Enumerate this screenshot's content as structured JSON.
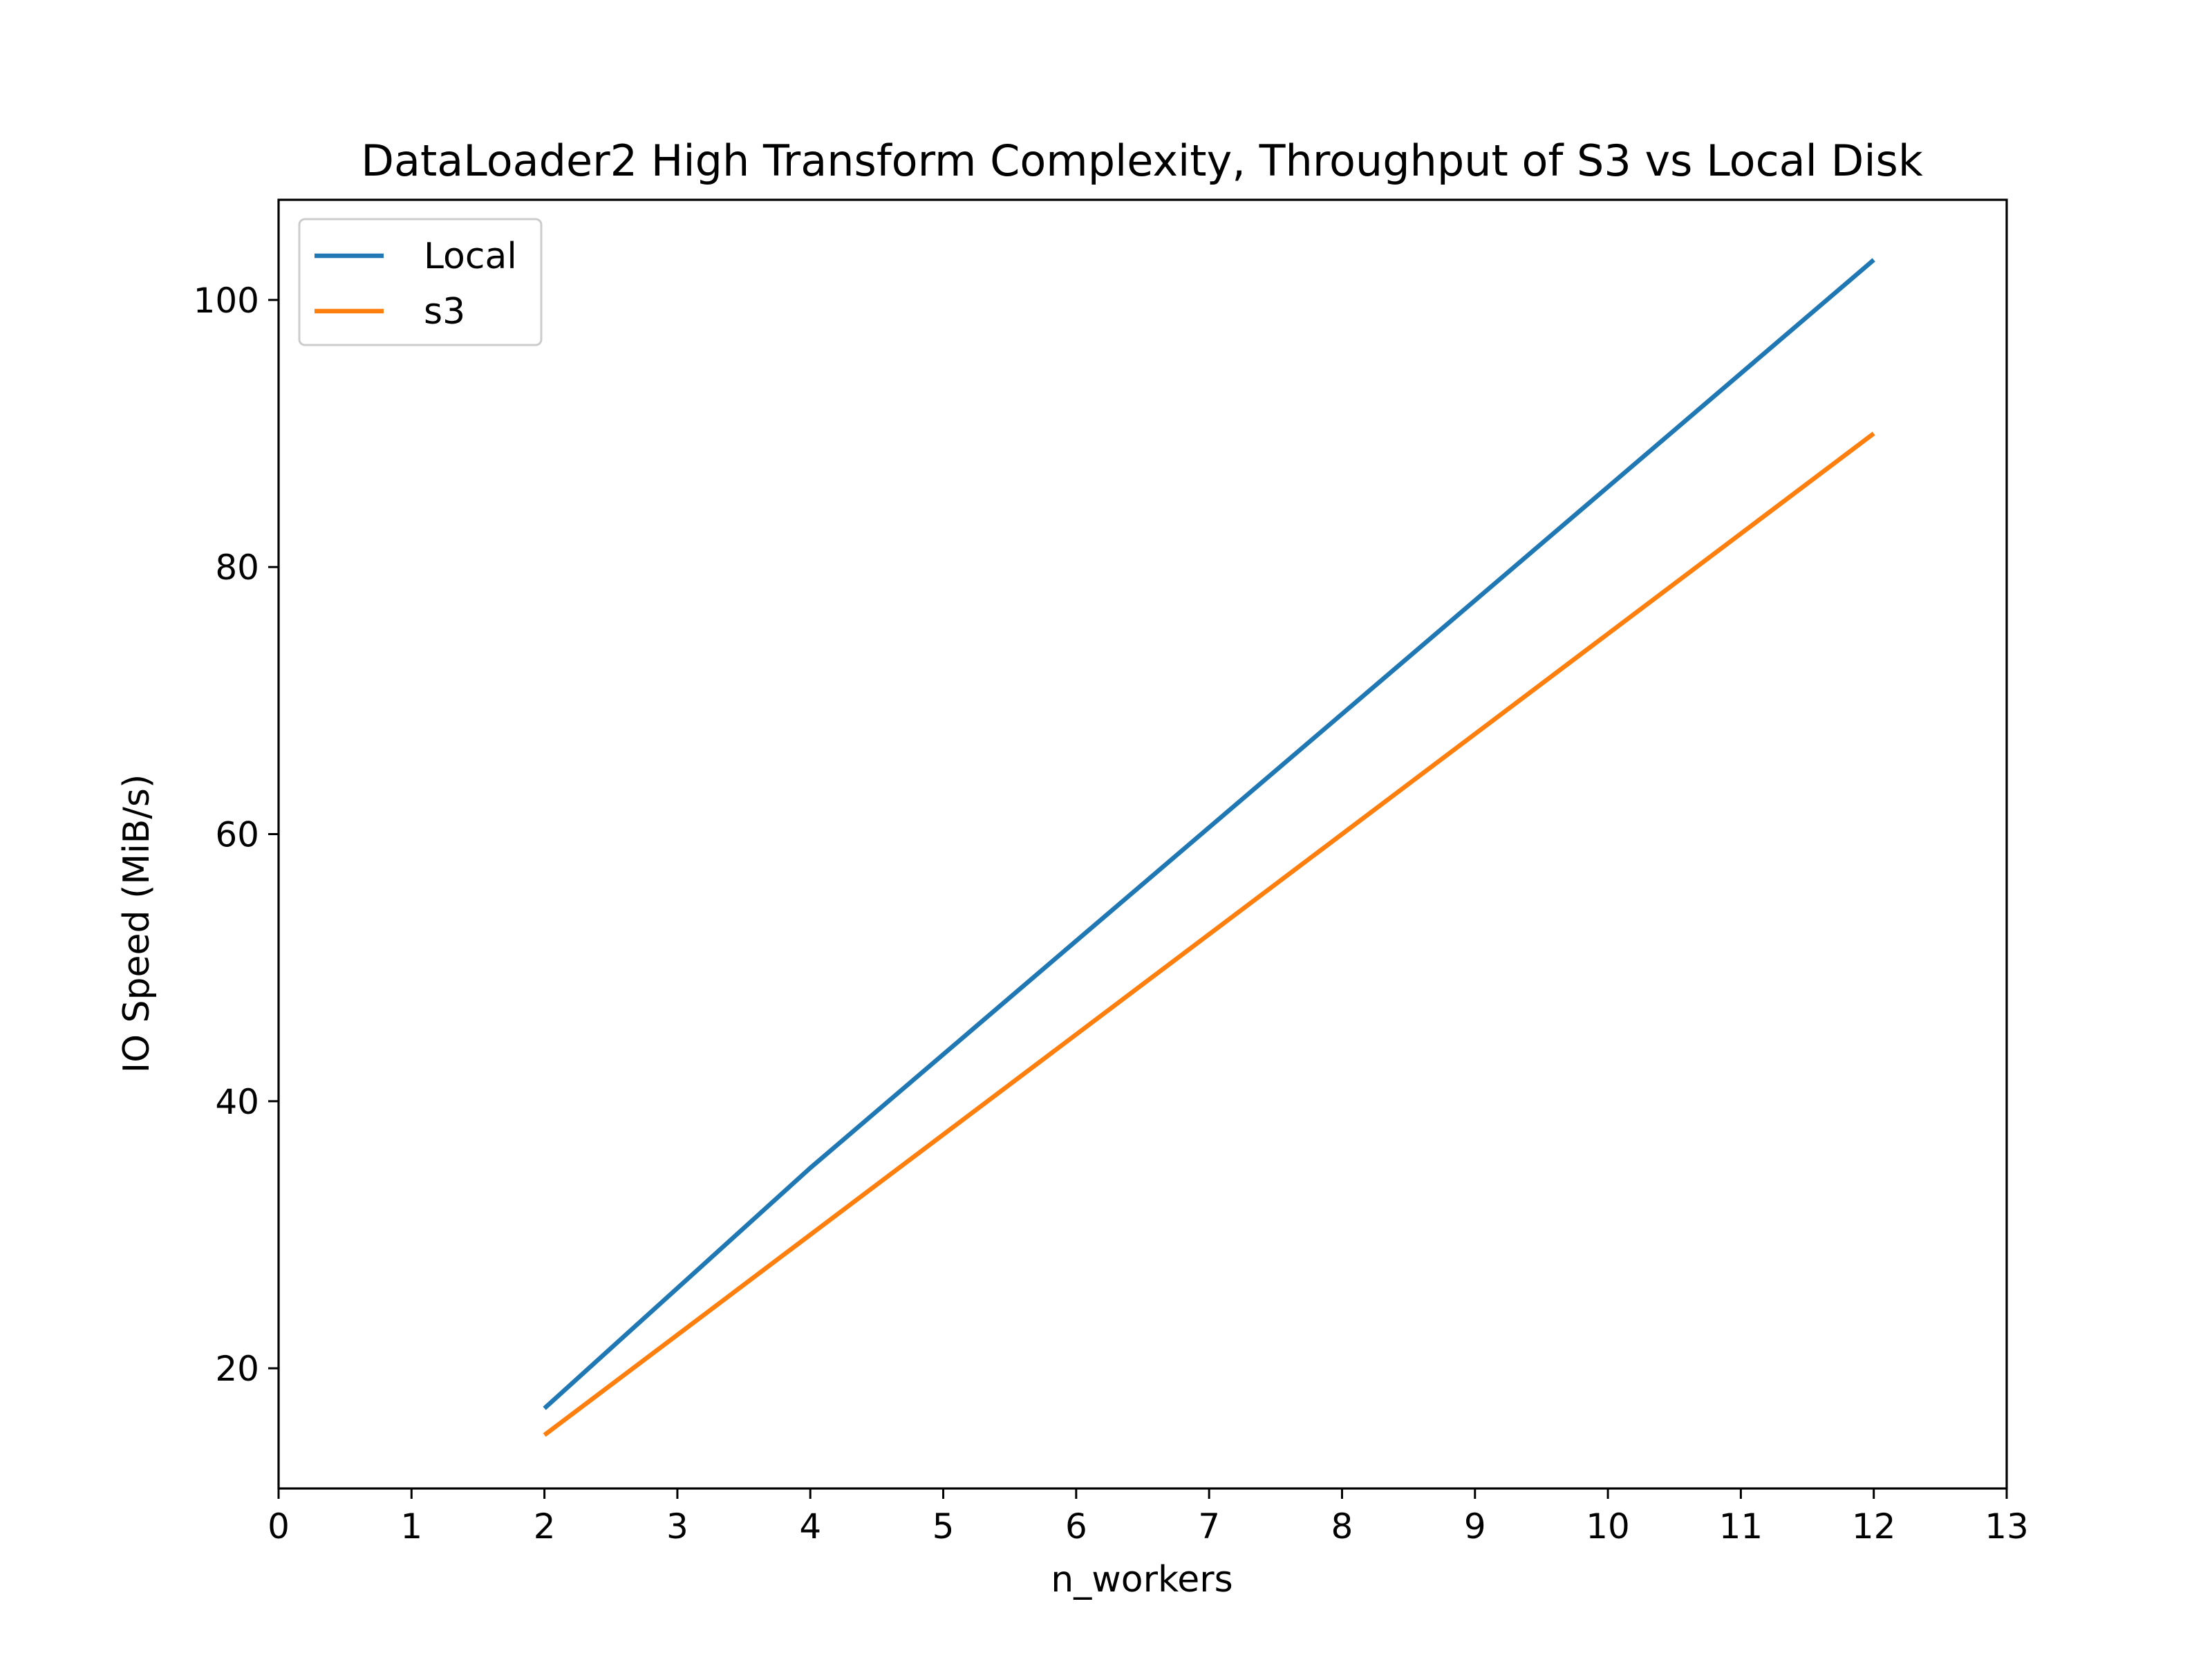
{
  "chart_data": {
    "type": "line",
    "title": "DataLoader2 High Transform Complexity, Throughput of S3 vs Local Disk",
    "xlabel": "n_workers",
    "ylabel": "IO Speed (MiB/s)",
    "xlim": [
      0,
      13
    ],
    "ylim": [
      11,
      107.5
    ],
    "xticks": [
      0,
      1,
      2,
      3,
      4,
      5,
      6,
      7,
      8,
      9,
      10,
      11,
      12,
      13
    ],
    "yticks": [
      20,
      40,
      60,
      80,
      100
    ],
    "grid": false,
    "legend_position": "upper left",
    "series": [
      {
        "name": "Local",
        "color": "#1f77b4",
        "x": [
          2,
          4,
          6,
          8,
          10,
          12
        ],
        "y": [
          17,
          35,
          52,
          69,
          86,
          103
        ]
      },
      {
        "name": "s3",
        "color": "#ff7f0e",
        "x": [
          2,
          4,
          6,
          8,
          10,
          12
        ],
        "y": [
          15,
          30,
          45,
          60,
          75,
          90
        ]
      }
    ]
  }
}
